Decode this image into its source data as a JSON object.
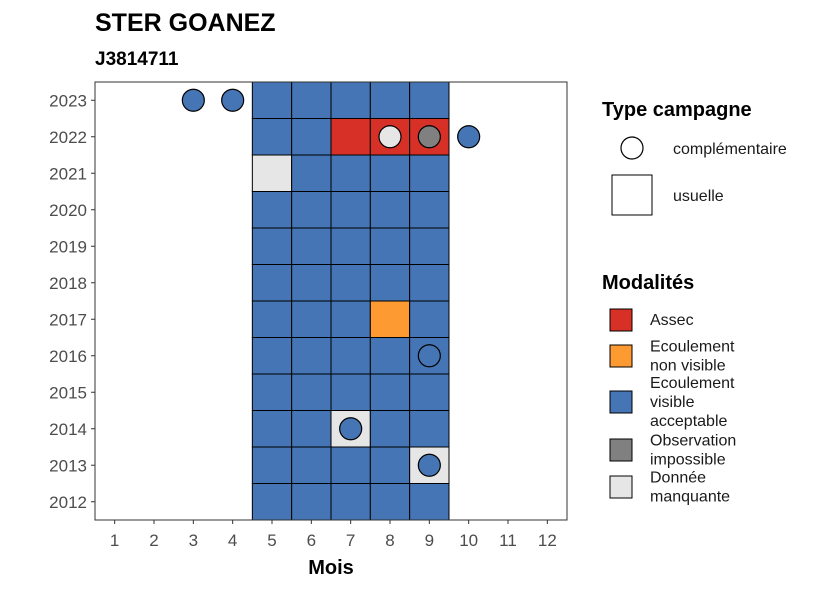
{
  "chart_data": {
    "type": "heatmap",
    "title": "STER GOANEZ",
    "subtitle": "J3814711",
    "xlabel": "Mois",
    "ylabel": "",
    "x_ticks": [
      "1",
      "2",
      "3",
      "4",
      "5",
      "6",
      "7",
      "8",
      "9",
      "10",
      "11",
      "12"
    ],
    "y_ticks": [
      "2023",
      "2022",
      "2021",
      "2020",
      "2019",
      "2018",
      "2017",
      "2016",
      "2015",
      "2014",
      "2013",
      "2012"
    ],
    "colors": {
      "assec": "#d73027",
      "ecoulement_non_visible": "#fd9a32",
      "ecoulement_visible": "#4575b4",
      "observation_impossible": "#808080",
      "donnee_manquante": "#e6e6e6"
    },
    "legend_type": {
      "title": "Type campagne",
      "items": [
        {
          "label": "complémentaire",
          "shape": "circle"
        },
        {
          "label": "usuelle",
          "shape": "square"
        }
      ]
    },
    "legend_modalites": {
      "title": "Modalités",
      "items": [
        {
          "key": "assec",
          "lines": [
            "Assec"
          ]
        },
        {
          "key": "ecoulement_non_visible",
          "lines": [
            "Ecoulement",
            "non visible"
          ]
        },
        {
          "key": "ecoulement_visible",
          "lines": [
            "Ecoulement",
            "visible",
            "acceptable"
          ]
        },
        {
          "key": "observation_impossible",
          "lines": [
            "Observation",
            "impossible"
          ]
        },
        {
          "key": "donnee_manquante",
          "lines": [
            "Donnée",
            "manquante"
          ]
        }
      ]
    },
    "usuelle": [
      {
        "year": 2023,
        "months": [
          "ecoulement_visible",
          "ecoulement_visible",
          "ecoulement_visible",
          "ecoulement_visible",
          "ecoulement_visible"
        ]
      },
      {
        "year": 2022,
        "months": [
          "ecoulement_visible",
          "ecoulement_visible",
          "assec",
          "assec",
          "assec"
        ]
      },
      {
        "year": 2021,
        "months": [
          "donnee_manquante",
          "ecoulement_visible",
          "ecoulement_visible",
          "ecoulement_visible",
          "ecoulement_visible"
        ]
      },
      {
        "year": 2020,
        "months": [
          "ecoulement_visible",
          "ecoulement_visible",
          "ecoulement_visible",
          "ecoulement_visible",
          "ecoulement_visible"
        ]
      },
      {
        "year": 2019,
        "months": [
          "ecoulement_visible",
          "ecoulement_visible",
          "ecoulement_visible",
          "ecoulement_visible",
          "ecoulement_visible"
        ]
      },
      {
        "year": 2018,
        "months": [
          "ecoulement_visible",
          "ecoulement_visible",
          "ecoulement_visible",
          "ecoulement_visible",
          "ecoulement_visible"
        ]
      },
      {
        "year": 2017,
        "months": [
          "ecoulement_visible",
          "ecoulement_visible",
          "ecoulement_visible",
          "ecoulement_non_visible",
          "ecoulement_visible"
        ]
      },
      {
        "year": 2016,
        "months": [
          "ecoulement_visible",
          "ecoulement_visible",
          "ecoulement_visible",
          "ecoulement_visible",
          "ecoulement_visible"
        ]
      },
      {
        "year": 2015,
        "months": [
          "ecoulement_visible",
          "ecoulement_visible",
          "ecoulement_visible",
          "ecoulement_visible",
          "ecoulement_visible"
        ]
      },
      {
        "year": 2014,
        "months": [
          "ecoulement_visible",
          "ecoulement_visible",
          "donnee_manquante",
          "ecoulement_visible",
          "ecoulement_visible"
        ]
      },
      {
        "year": 2013,
        "months": [
          "ecoulement_visible",
          "ecoulement_visible",
          "ecoulement_visible",
          "ecoulement_visible",
          "donnee_manquante"
        ]
      },
      {
        "year": 2012,
        "months": [
          "ecoulement_visible",
          "ecoulement_visible",
          "ecoulement_visible",
          "ecoulement_visible",
          "ecoulement_visible"
        ]
      }
    ],
    "usuelle_first_month": 5,
    "complementaire": [
      {
        "year": 2023,
        "month": 3,
        "modalite": "ecoulement_visible"
      },
      {
        "year": 2023,
        "month": 4,
        "modalite": "ecoulement_visible"
      },
      {
        "year": 2022,
        "month": 8,
        "modalite": "donnee_manquante"
      },
      {
        "year": 2022,
        "month": 9,
        "modalite": "observation_impossible"
      },
      {
        "year": 2022,
        "month": 10,
        "modalite": "ecoulement_visible"
      },
      {
        "year": 2016,
        "month": 9,
        "modalite": "ecoulement_visible"
      },
      {
        "year": 2014,
        "month": 7,
        "modalite": "ecoulement_visible"
      },
      {
        "year": 2013,
        "month": 9,
        "modalite": "ecoulement_visible"
      }
    ]
  }
}
